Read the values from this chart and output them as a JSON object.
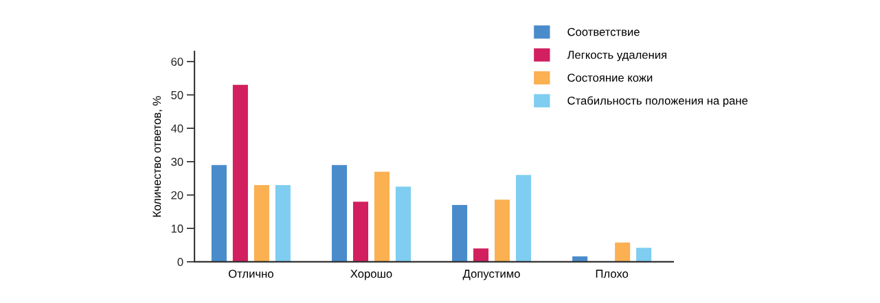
{
  "chart_data": {
    "type": "bar",
    "ylabel": "Количество ответов, %",
    "categories": [
      "Отлично",
      "Хорошо",
      "Допустимо",
      "Плохо"
    ],
    "series": [
      {
        "name": "Соответствие",
        "color": "#4a8ccb",
        "values": [
          29,
          29,
          17,
          1.6
        ]
      },
      {
        "name": "Легкость удаления",
        "color": "#d21f5f",
        "values": [
          53,
          18,
          4,
          0
        ]
      },
      {
        "name": "Состояние кожи",
        "color": "#fbb052",
        "values": [
          23,
          27,
          18.6,
          5.8
        ]
      },
      {
        "name": "Стабильность положения на ране",
        "color": "#7fcdf1",
        "values": [
          23,
          22.5,
          26,
          4.2
        ]
      }
    ],
    "ylim": [
      0,
      63
    ],
    "yticks": [
      0,
      10,
      20,
      30,
      40,
      50,
      60
    ],
    "grid": false,
    "legend": "top right"
  }
}
